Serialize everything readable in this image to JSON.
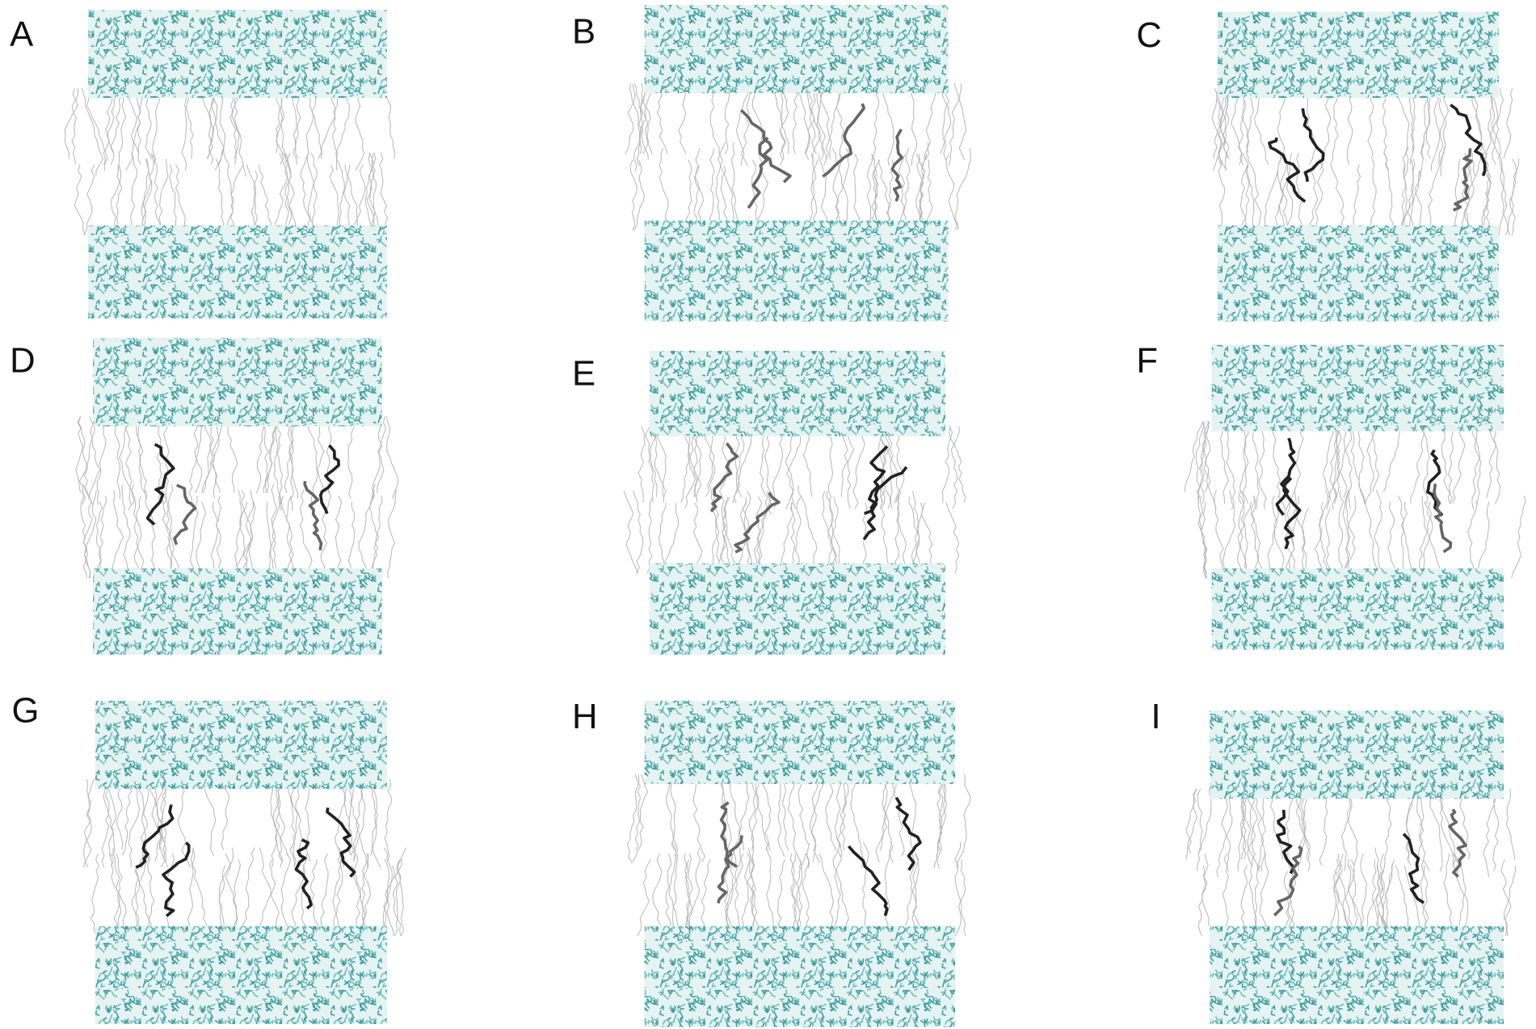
{
  "panels": [
    {
      "label": "A"
    },
    {
      "label": "B"
    },
    {
      "label": "C"
    },
    {
      "label": "D"
    },
    {
      "label": "E"
    },
    {
      "label": "F"
    },
    {
      "label": "G"
    },
    {
      "label": "H"
    },
    {
      "label": "I"
    }
  ]
}
